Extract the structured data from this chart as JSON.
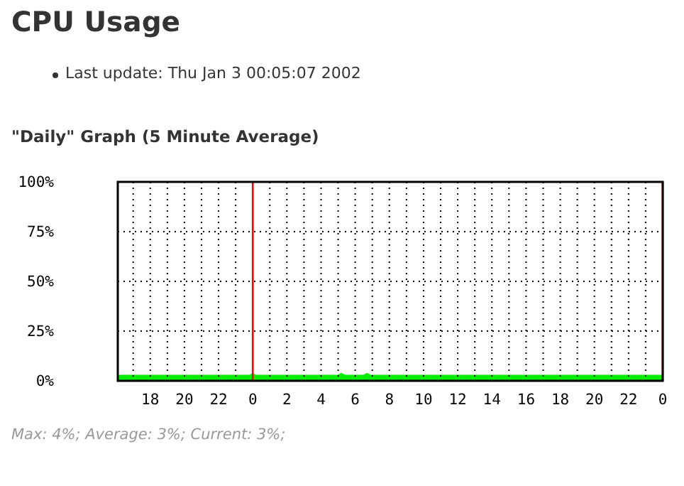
{
  "chart_data": {
    "type": "area",
    "title": "CPU Usage",
    "subtitle": "Last update: Thu Jan 3 00:05:07 2002",
    "annotations": [
      "\"Daily\" Graph (5 Minute Average)",
      "Max: 4%; Average: 3%; Current: 3%;"
    ],
    "x": [
      "2002-01-01T16:06",
      "2002-01-01T18:00",
      "2002-01-01T20:00",
      "2002-01-01T22:00",
      "2002-01-01T23:50",
      "2002-01-02T00:00",
      "2002-01-02T00:10",
      "2002-01-02T02:00",
      "2002-01-02T04:00",
      "2002-01-02T05:00",
      "2002-01-02T05:10",
      "2002-01-02T05:25",
      "2002-01-02T06:30",
      "2002-01-02T06:40",
      "2002-01-02T06:55",
      "2002-01-02T08:00",
      "2002-01-02T10:00",
      "2002-01-02T12:00",
      "2002-01-02T14:00",
      "2002-01-02T16:00",
      "2002-01-02T18:00",
      "2002-01-02T20:00",
      "2002-01-02T22:00",
      "2002-01-03T00:00"
    ],
    "series": [
      {
        "color": "#00ee00",
        "values": [
          3,
          3,
          3,
          3,
          3,
          4,
          3,
          3,
          3,
          3,
          4,
          3,
          3,
          4,
          3,
          3,
          3,
          3,
          3,
          3,
          3,
          3,
          3,
          3
        ]
      }
    ],
    "xlim": [
      "2002-01-01T16:06",
      "2002-01-03T00:00"
    ],
    "xticks": [
      {
        "value": "2002-01-01T17:00",
        "label": null
      },
      {
        "value": "2002-01-01T18:00",
        "label": "18"
      },
      {
        "value": "2002-01-01T19:00",
        "label": null
      },
      {
        "value": "2002-01-01T20:00",
        "label": "20"
      },
      {
        "value": "2002-01-01T21:00",
        "label": null
      },
      {
        "value": "2002-01-01T22:00",
        "label": "22"
      },
      {
        "value": "2002-01-01T23:00",
        "label": null
      },
      {
        "value": "2002-01-02T00:00",
        "label": "0"
      },
      {
        "value": "2002-01-02T01:00",
        "label": null
      },
      {
        "value": "2002-01-02T02:00",
        "label": "2"
      },
      {
        "value": "2002-01-02T03:00",
        "label": null
      },
      {
        "value": "2002-01-02T04:00",
        "label": "4"
      },
      {
        "value": "2002-01-02T05:00",
        "label": null
      },
      {
        "value": "2002-01-02T06:00",
        "label": "6"
      },
      {
        "value": "2002-01-02T07:00",
        "label": null
      },
      {
        "value": "2002-01-02T08:00",
        "label": "8"
      },
      {
        "value": "2002-01-02T09:00",
        "label": null
      },
      {
        "value": "2002-01-02T10:00",
        "label": "10"
      },
      {
        "value": "2002-01-02T11:00",
        "label": null
      },
      {
        "value": "2002-01-02T12:00",
        "label": "12"
      },
      {
        "value": "2002-01-02T13:00",
        "label": null
      },
      {
        "value": "2002-01-02T14:00",
        "label": "14"
      },
      {
        "value": "2002-01-02T15:00",
        "label": null
      },
      {
        "value": "2002-01-02T16:00",
        "label": "16"
      },
      {
        "value": "2002-01-02T17:00",
        "label": null
      },
      {
        "value": "2002-01-02T18:00",
        "label": "18"
      },
      {
        "value": "2002-01-02T19:00",
        "label": null
      },
      {
        "value": "2002-01-02T20:00",
        "label": "20"
      },
      {
        "value": "2002-01-02T21:00",
        "label": null
      },
      {
        "value": "2002-01-02T22:00",
        "label": "22"
      },
      {
        "value": "2002-01-02T23:00",
        "label": null
      },
      {
        "value": "2002-01-03T00:00",
        "label": "0"
      }
    ],
    "ylim": [
      0,
      100
    ],
    "yticks": [
      {
        "value": 0,
        "label": "0%"
      },
      {
        "value": 25,
        "label": "25%"
      },
      {
        "value": 50,
        "label": "50%"
      },
      {
        "value": 75,
        "label": "75%"
      },
      {
        "value": 100,
        "label": "100%"
      }
    ],
    "grid": true,
    "ref_lines": [
      {
        "axis": "x",
        "value": "2002-01-02T00:00",
        "color": "#ff0000"
      },
      {
        "axis": "x",
        "value": "2002-01-03T00:00",
        "color": "#ff0000"
      }
    ]
  }
}
